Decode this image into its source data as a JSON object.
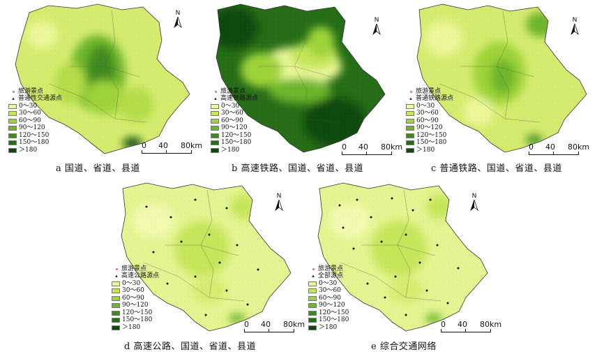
{
  "legend_common": {
    "tourist_label": "旅游景点",
    "bins": [
      "0～30",
      "30～60",
      "60～90",
      "90～120",
      "120～150",
      "150～180",
      "＞180"
    ],
    "bin_colors": [
      "#ecf79a",
      "#c6e65a",
      "#9dd338",
      "#6db52c",
      "#3f8a20",
      "#256d16",
      "#0d4a0c"
    ],
    "tourist_color": "#c97a6a"
  },
  "north_label": "N",
  "scale": {
    "ticks": [
      "0",
      "40",
      "80km"
    ]
  },
  "panels": [
    {
      "id": "a",
      "source_label": "普通性交通源点",
      "caption": "a 国道、省道、县道"
    },
    {
      "id": "b",
      "source_label": "高速铁路源点",
      "caption": "b 高速铁路、国道、省道、县道"
    },
    {
      "id": "c",
      "source_label": "普通铁路源点",
      "caption": "c 普通铁路、国道、省道、县道"
    },
    {
      "id": "d",
      "source_label": "高速公路源点",
      "caption": "d 高速公路、国道、省道、县道"
    },
    {
      "id": "e",
      "source_label": "全部源点",
      "caption": "e 综合交通网络"
    }
  ]
}
